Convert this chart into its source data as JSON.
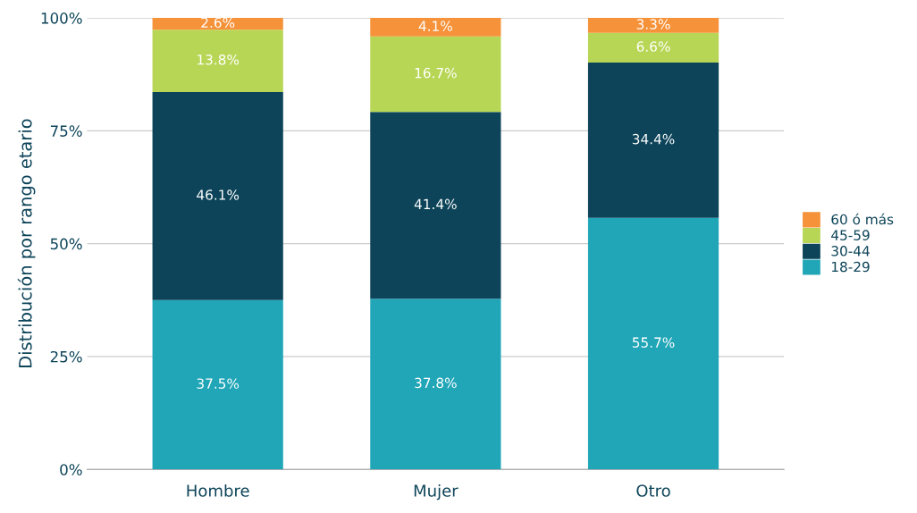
{
  "chart_data": {
    "type": "bar",
    "stacked": true,
    "ylabel": "Distribución por rango etario",
    "categories": [
      "Hombre",
      "Mujer",
      "Otro"
    ],
    "series": [
      {
        "name": "18-29",
        "color": "#21a6b8",
        "values": [
          37.5,
          37.8,
          55.7
        ],
        "value_labels": [
          "37.5%",
          "37.8%",
          "55.7%"
        ]
      },
      {
        "name": "30-44",
        "color": "#0d4459",
        "values": [
          46.1,
          41.4,
          34.4
        ],
        "value_labels": [
          "46.1%",
          "41.4%",
          "34.4%"
        ]
      },
      {
        "name": "45-59",
        "color": "#b8d655",
        "values": [
          13.8,
          16.7,
          6.6
        ],
        "value_labels": [
          "13.8%",
          "16.7%",
          "6.6%"
        ]
      },
      {
        "name": "60 ó más",
        "color": "#f5923a",
        "values": [
          2.6,
          4.1,
          3.3
        ],
        "value_labels": [
          "2.6%",
          "4.1%",
          "3.3%"
        ]
      }
    ],
    "ylim": [
      0,
      100
    ],
    "yticks": [
      {
        "value": 0,
        "label": "0%"
      },
      {
        "value": 25,
        "label": "25%"
      },
      {
        "value": 50,
        "label": "50%"
      },
      {
        "value": 75,
        "label": "75%"
      },
      {
        "value": 100,
        "label": "100%"
      }
    ],
    "grid": "y",
    "legend": "right"
  }
}
